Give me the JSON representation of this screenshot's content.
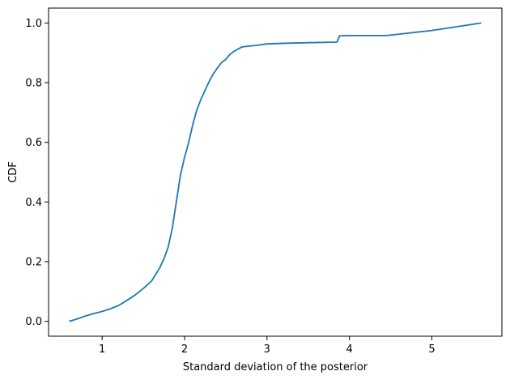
{
  "chart_data": {
    "type": "line",
    "title": "",
    "xlabel": "Standard deviation of the posterior",
    "ylabel": "CDF",
    "xlim": [
      0.35,
      5.85
    ],
    "ylim": [
      -0.05,
      1.05
    ],
    "xticks": [
      1,
      2,
      3,
      4,
      5
    ],
    "xtick_labels": [
      "1",
      "2",
      "3",
      "4",
      "5"
    ],
    "yticks": [
      0.0,
      0.2,
      0.4,
      0.6,
      0.8,
      1.0
    ],
    "ytick_labels": [
      "0.0",
      "0.2",
      "0.4",
      "0.6",
      "0.8",
      "1.0"
    ],
    "grid": false,
    "series": [
      {
        "color": "#1f77b4",
        "x": [
          0.6,
          0.7,
          0.8,
          0.9,
          1.0,
          1.1,
          1.2,
          1.3,
          1.4,
          1.5,
          1.6,
          1.7,
          1.75,
          1.8,
          1.85,
          1.9,
          1.95,
          2.0,
          2.05,
          2.1,
          2.15,
          2.2,
          2.25,
          2.3,
          2.35,
          2.4,
          2.45,
          2.5,
          2.55,
          2.6,
          2.65,
          2.7,
          2.8,
          2.9,
          3.0,
          3.2,
          3.5,
          3.85,
          3.88,
          4.0,
          4.45,
          5.0,
          5.6
        ],
        "y": [
          0.0,
          0.008,
          0.018,
          0.026,
          0.033,
          0.042,
          0.053,
          0.07,
          0.088,
          0.11,
          0.135,
          0.18,
          0.21,
          0.248,
          0.31,
          0.4,
          0.49,
          0.55,
          0.6,
          0.66,
          0.71,
          0.745,
          0.775,
          0.805,
          0.83,
          0.85,
          0.868,
          0.878,
          0.895,
          0.905,
          0.913,
          0.92,
          0.923,
          0.926,
          0.93,
          0.932,
          0.934,
          0.936,
          0.957,
          0.958,
          0.958,
          0.975,
          1.0
        ]
      }
    ]
  }
}
